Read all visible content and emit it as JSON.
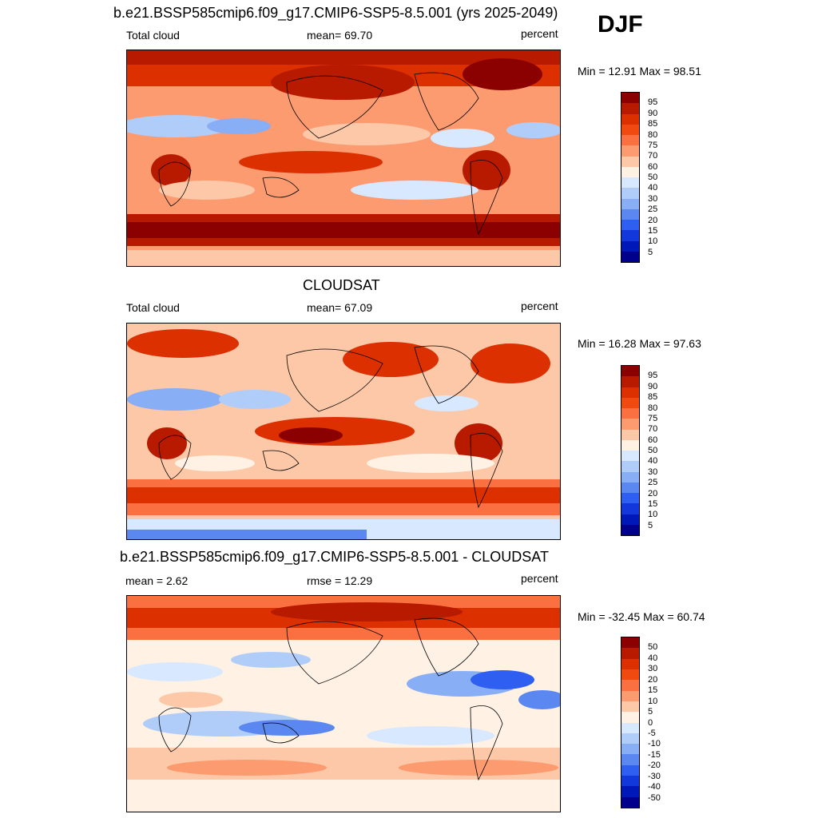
{
  "season": "DJF",
  "panels": [
    {
      "title": "b.e21.BSSP585cmip6.f09_g17.CMIP6-SSP5-8.5.001 (yrs 2025-2049)",
      "left_label": "Total cloud",
      "center_label": "mean=  69.70",
      "right_label": "percent",
      "minmax": "Min =  12.91 Max =  98.51",
      "levels": [
        "95",
        "90",
        "85",
        "80",
        "75",
        "70",
        "60",
        "50",
        "40",
        "30",
        "25",
        "20",
        "15",
        "10",
        "5"
      ],
      "colors": [
        "#8b0000",
        "#b81a00",
        "#dc3000",
        "#f04a10",
        "#fa7040",
        "#fc9a70",
        "#fdc8a8",
        "#fff1e4",
        "#d8e8ff",
        "#b0cdfa",
        "#88aef5",
        "#5a88f0",
        "#2f5ff0",
        "#1238dc",
        "#0018b8",
        "#00008c"
      ]
    },
    {
      "title": "CLOUDSAT",
      "left_label": "Total cloud",
      "center_label": "mean=  67.09",
      "right_label": "percent",
      "minmax": "Min =  16.28 Max =  97.63",
      "levels": [
        "95",
        "90",
        "85",
        "80",
        "75",
        "70",
        "60",
        "50",
        "40",
        "30",
        "25",
        "20",
        "15",
        "10",
        "5"
      ],
      "colors": [
        "#8b0000",
        "#b81a00",
        "#dc3000",
        "#f04a10",
        "#fa7040",
        "#fc9a70",
        "#fdc8a8",
        "#fff1e4",
        "#d8e8ff",
        "#b0cdfa",
        "#88aef5",
        "#5a88f0",
        "#2f5ff0",
        "#1238dc",
        "#0018b8",
        "#00008c"
      ]
    },
    {
      "title": "b.e21.BSSP585cmip6.f09_g17.CMIP6-SSP5-8.5.001 - CLOUDSAT",
      "left_label": "mean =   2.62",
      "center_label": "rmse =  12.29",
      "right_label": "percent",
      "minmax": "Min = -32.45 Max =  60.74",
      "levels": [
        "50",
        "40",
        "30",
        "20",
        "15",
        "10",
        "5",
        "0",
        "-5",
        "-10",
        "-15",
        "-20",
        "-30",
        "-40",
        "-50"
      ],
      "colors": [
        "#8b0000",
        "#b81a00",
        "#dc3000",
        "#f04a10",
        "#fa7040",
        "#fc9a70",
        "#fdc8a8",
        "#fff1e4",
        "#d8e8ff",
        "#b0cdfa",
        "#88aef5",
        "#5a88f0",
        "#2f5ff0",
        "#1238dc",
        "#0018b8",
        "#00008c"
      ]
    }
  ]
}
